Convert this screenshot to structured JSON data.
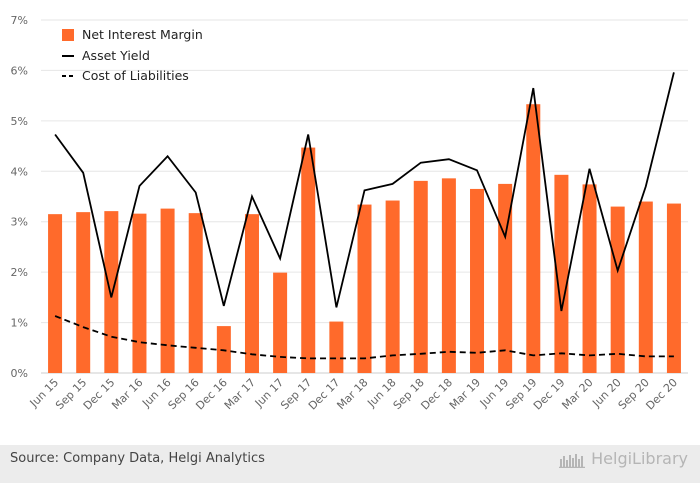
{
  "chart_data": {
    "type": "bar",
    "categories": [
      "Jun 15",
      "Sep 15",
      "Dec 15",
      "Mar 16",
      "Jun 16",
      "Sep 16",
      "Dec 16",
      "Mar 17",
      "Jun 17",
      "Sep 17",
      "Dec 17",
      "Mar 18",
      "Jun 18",
      "Sep 18",
      "Dec 18",
      "Mar 19",
      "Jun 19",
      "Sep 19",
      "Dec 19",
      "Mar 20",
      "Jun 20",
      "Sep 20",
      "Dec 20"
    ],
    "series": [
      {
        "name": "Net Interest Margin",
        "type": "bar",
        "values": [
          3.15,
          3.19,
          3.21,
          3.16,
          3.26,
          3.17,
          0.93,
          3.15,
          1.99,
          4.47,
          1.02,
          3.34,
          3.42,
          3.81,
          3.86,
          3.65,
          3.75,
          5.33,
          3.93,
          3.74,
          3.3,
          3.4,
          3.36
        ]
      },
      {
        "name": "Asset Yield",
        "type": "line",
        "values": [
          4.73,
          3.97,
          1.5,
          3.71,
          4.3,
          3.58,
          1.33,
          3.5,
          2.27,
          4.73,
          1.3,
          3.62,
          3.75,
          4.17,
          4.24,
          4.02,
          2.7,
          5.65,
          1.23,
          4.05,
          2.03,
          3.7,
          5.96
        ]
      },
      {
        "name": "Cost of Liabilities",
        "type": "line",
        "dashed": true,
        "values": [
          1.13,
          0.91,
          0.72,
          0.61,
          0.55,
          0.5,
          0.45,
          0.37,
          0.32,
          0.29,
          0.29,
          0.29,
          0.35,
          0.38,
          0.42,
          0.4,
          0.45,
          0.35,
          0.39,
          0.35,
          0.38,
          0.33,
          0.33
        ]
      }
    ],
    "y_ticks": [
      "0%",
      "1%",
      "2%",
      "3%",
      "4%",
      "5%",
      "6%",
      "7%"
    ],
    "ylim": [
      0,
      7
    ],
    "grid": true,
    "legend_position": "top-left"
  },
  "colors": {
    "bar": "#ff6a2b",
    "line": "#000000",
    "grid": "#e6e6e6",
    "footer_bg": "#ececec"
  },
  "footer": {
    "source": "Source: Company Data, Helgi Analytics",
    "brand": "HelgiLibrary"
  }
}
